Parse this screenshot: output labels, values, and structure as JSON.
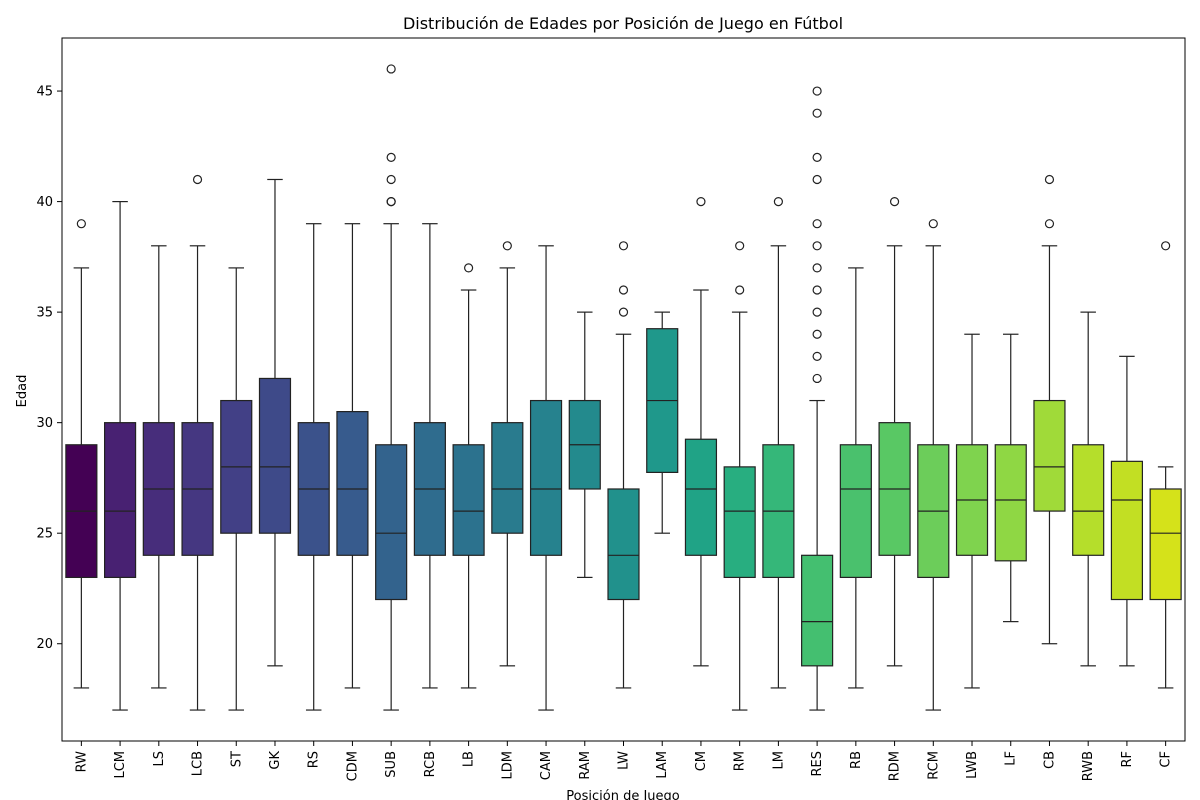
{
  "chart_data": {
    "type": "box",
    "title": "Distribución de Edades por Posición de Juego en Fútbol",
    "xlabel": "Posición de Juego",
    "ylabel": "Edad",
    "ylim": [
      15.6,
      47.4
    ],
    "yticks": [
      20,
      25,
      30,
      35,
      40,
      45
    ],
    "grid": false,
    "palette": "viridis",
    "categories": [
      "RW",
      "LCM",
      "LS",
      "LCB",
      "ST",
      "GK",
      "RS",
      "CDM",
      "SUB",
      "RCB",
      "LB",
      "LDM",
      "CAM",
      "RAM",
      "LW",
      "LAM",
      "CM",
      "RM",
      "LM",
      "RES",
      "RB",
      "RDM",
      "RCM",
      "LWB",
      "LF",
      "CB",
      "RWB",
      "RF",
      "CF"
    ],
    "boxes": [
      {
        "position": "RW",
        "min": 18,
        "q1": 23,
        "median": 26,
        "q3": 29,
        "max": 37,
        "outliers": [
          39
        ],
        "color": "#440154"
      },
      {
        "position": "LCM",
        "min": 17,
        "q1": 23,
        "median": 26,
        "q3": 30,
        "max": 40,
        "outliers": [],
        "color": "#482172"
      },
      {
        "position": "LS",
        "min": 18,
        "q1": 24,
        "median": 27,
        "q3": 30,
        "max": 38,
        "outliers": [],
        "color": "#472d7b"
      },
      {
        "position": "LCB",
        "min": 17,
        "q1": 24,
        "median": 27,
        "q3": 30,
        "max": 38,
        "outliers": [
          41
        ],
        "color": "#453781"
      },
      {
        "position": "ST",
        "min": 17,
        "q1": 25,
        "median": 28,
        "q3": 31,
        "max": 37,
        "outliers": [],
        "color": "#424086"
      },
      {
        "position": "GK",
        "min": 19,
        "q1": 25,
        "median": 28,
        "q3": 32,
        "max": 41,
        "outliers": [],
        "color": "#3e4a89"
      },
      {
        "position": "RS",
        "min": 17,
        "q1": 24,
        "median": 27,
        "q3": 30,
        "max": 39,
        "outliers": [],
        "color": "#3b528b"
      },
      {
        "position": "CDM",
        "min": 18,
        "q1": 24,
        "median": 27,
        "q3": 30.5,
        "max": 39,
        "outliers": [],
        "color": "#375b8d"
      },
      {
        "position": "SUB",
        "min": 17,
        "q1": 22,
        "median": 25,
        "q3": 29,
        "max": 39,
        "outliers": [
          40,
          40,
          41,
          42,
          46
        ],
        "color": "#33638d"
      },
      {
        "position": "RCB",
        "min": 18,
        "q1": 24,
        "median": 27,
        "q3": 30,
        "max": 39,
        "outliers": [],
        "color": "#2f6c8e"
      },
      {
        "position": "LB",
        "min": 18,
        "q1": 24,
        "median": 26,
        "q3": 29,
        "max": 36,
        "outliers": [
          37
        ],
        "color": "#2c728e"
      },
      {
        "position": "LDM",
        "min": 19,
        "q1": 25,
        "median": 27,
        "q3": 30,
        "max": 37,
        "outliers": [
          38
        ],
        "color": "#297b8e"
      },
      {
        "position": "CAM",
        "min": 17,
        "q1": 24,
        "median": 27,
        "q3": 31,
        "max": 38,
        "outliers": [],
        "color": "#26828e"
      },
      {
        "position": "RAM",
        "min": 23,
        "q1": 27,
        "median": 29,
        "q3": 31,
        "max": 35,
        "outliers": [],
        "color": "#238a8d"
      },
      {
        "position": "LW",
        "min": 18,
        "q1": 22,
        "median": 24,
        "q3": 27,
        "max": 34,
        "outliers": [
          35,
          36,
          38
        ],
        "color": "#21918c"
      },
      {
        "position": "LAM",
        "min": 25,
        "q1": 27.75,
        "median": 31,
        "q3": 34.25,
        "max": 35,
        "outliers": [],
        "color": "#1f988b"
      },
      {
        "position": "CM",
        "min": 19,
        "q1": 24,
        "median": 27,
        "q3": 29.25,
        "max": 36,
        "outliers": [
          40
        ],
        "color": "#20a386"
      },
      {
        "position": "RM",
        "min": 17,
        "q1": 23,
        "median": 26,
        "q3": 28,
        "max": 35,
        "outliers": [
          36,
          38
        ],
        "color": "#28ae80"
      },
      {
        "position": "LM",
        "min": 18,
        "q1": 23,
        "median": 26,
        "q3": 29,
        "max": 38,
        "outliers": [
          40
        ],
        "color": "#35b779"
      },
      {
        "position": "RES",
        "min": 17,
        "q1": 19,
        "median": 21,
        "q3": 24,
        "max": 31,
        "outliers": [
          32,
          33,
          34,
          35,
          36,
          37,
          38,
          39,
          41,
          42,
          44,
          45
        ],
        "color": "#44bf70"
      },
      {
        "position": "RB",
        "min": 18,
        "q1": 23,
        "median": 27,
        "q3": 29,
        "max": 37,
        "outliers": [],
        "color": "#4ac16d"
      },
      {
        "position": "RDM",
        "min": 19,
        "q1": 24,
        "median": 27,
        "q3": 30,
        "max": 38,
        "outliers": [
          40
        ],
        "color": "#59c864"
      },
      {
        "position": "RCM",
        "min": 17,
        "q1": 23,
        "median": 26,
        "q3": 29,
        "max": 38,
        "outliers": [
          39
        ],
        "color": "#6ccd5a"
      },
      {
        "position": "LWB",
        "min": 18,
        "q1": 24,
        "median": 26.5,
        "q3": 29,
        "max": 34,
        "outliers": [],
        "color": "#7fd34e"
      },
      {
        "position": "LF",
        "min": 21,
        "q1": 23.75,
        "median": 26.5,
        "q3": 29,
        "max": 34,
        "outliers": [],
        "color": "#8fd744"
      },
      {
        "position": "CB",
        "min": 20,
        "q1": 26,
        "median": 28,
        "q3": 31,
        "max": 38,
        "outliers": [
          39,
          41
        ],
        "color": "#a0da39"
      },
      {
        "position": "RWB",
        "min": 19,
        "q1": 24,
        "median": 26,
        "q3": 29,
        "max": 35,
        "outliers": [],
        "color": "#b5de2b"
      },
      {
        "position": "RF",
        "min": 19,
        "q1": 22,
        "median": 26.5,
        "q3": 28.25,
        "max": 33,
        "outliers": [],
        "color": "#c2df23"
      },
      {
        "position": "CF",
        "min": 18,
        "q1": 22,
        "median": 25,
        "q3": 27,
        "max": 28,
        "outliers": [
          38
        ],
        "color": "#d5e21a"
      }
    ]
  }
}
